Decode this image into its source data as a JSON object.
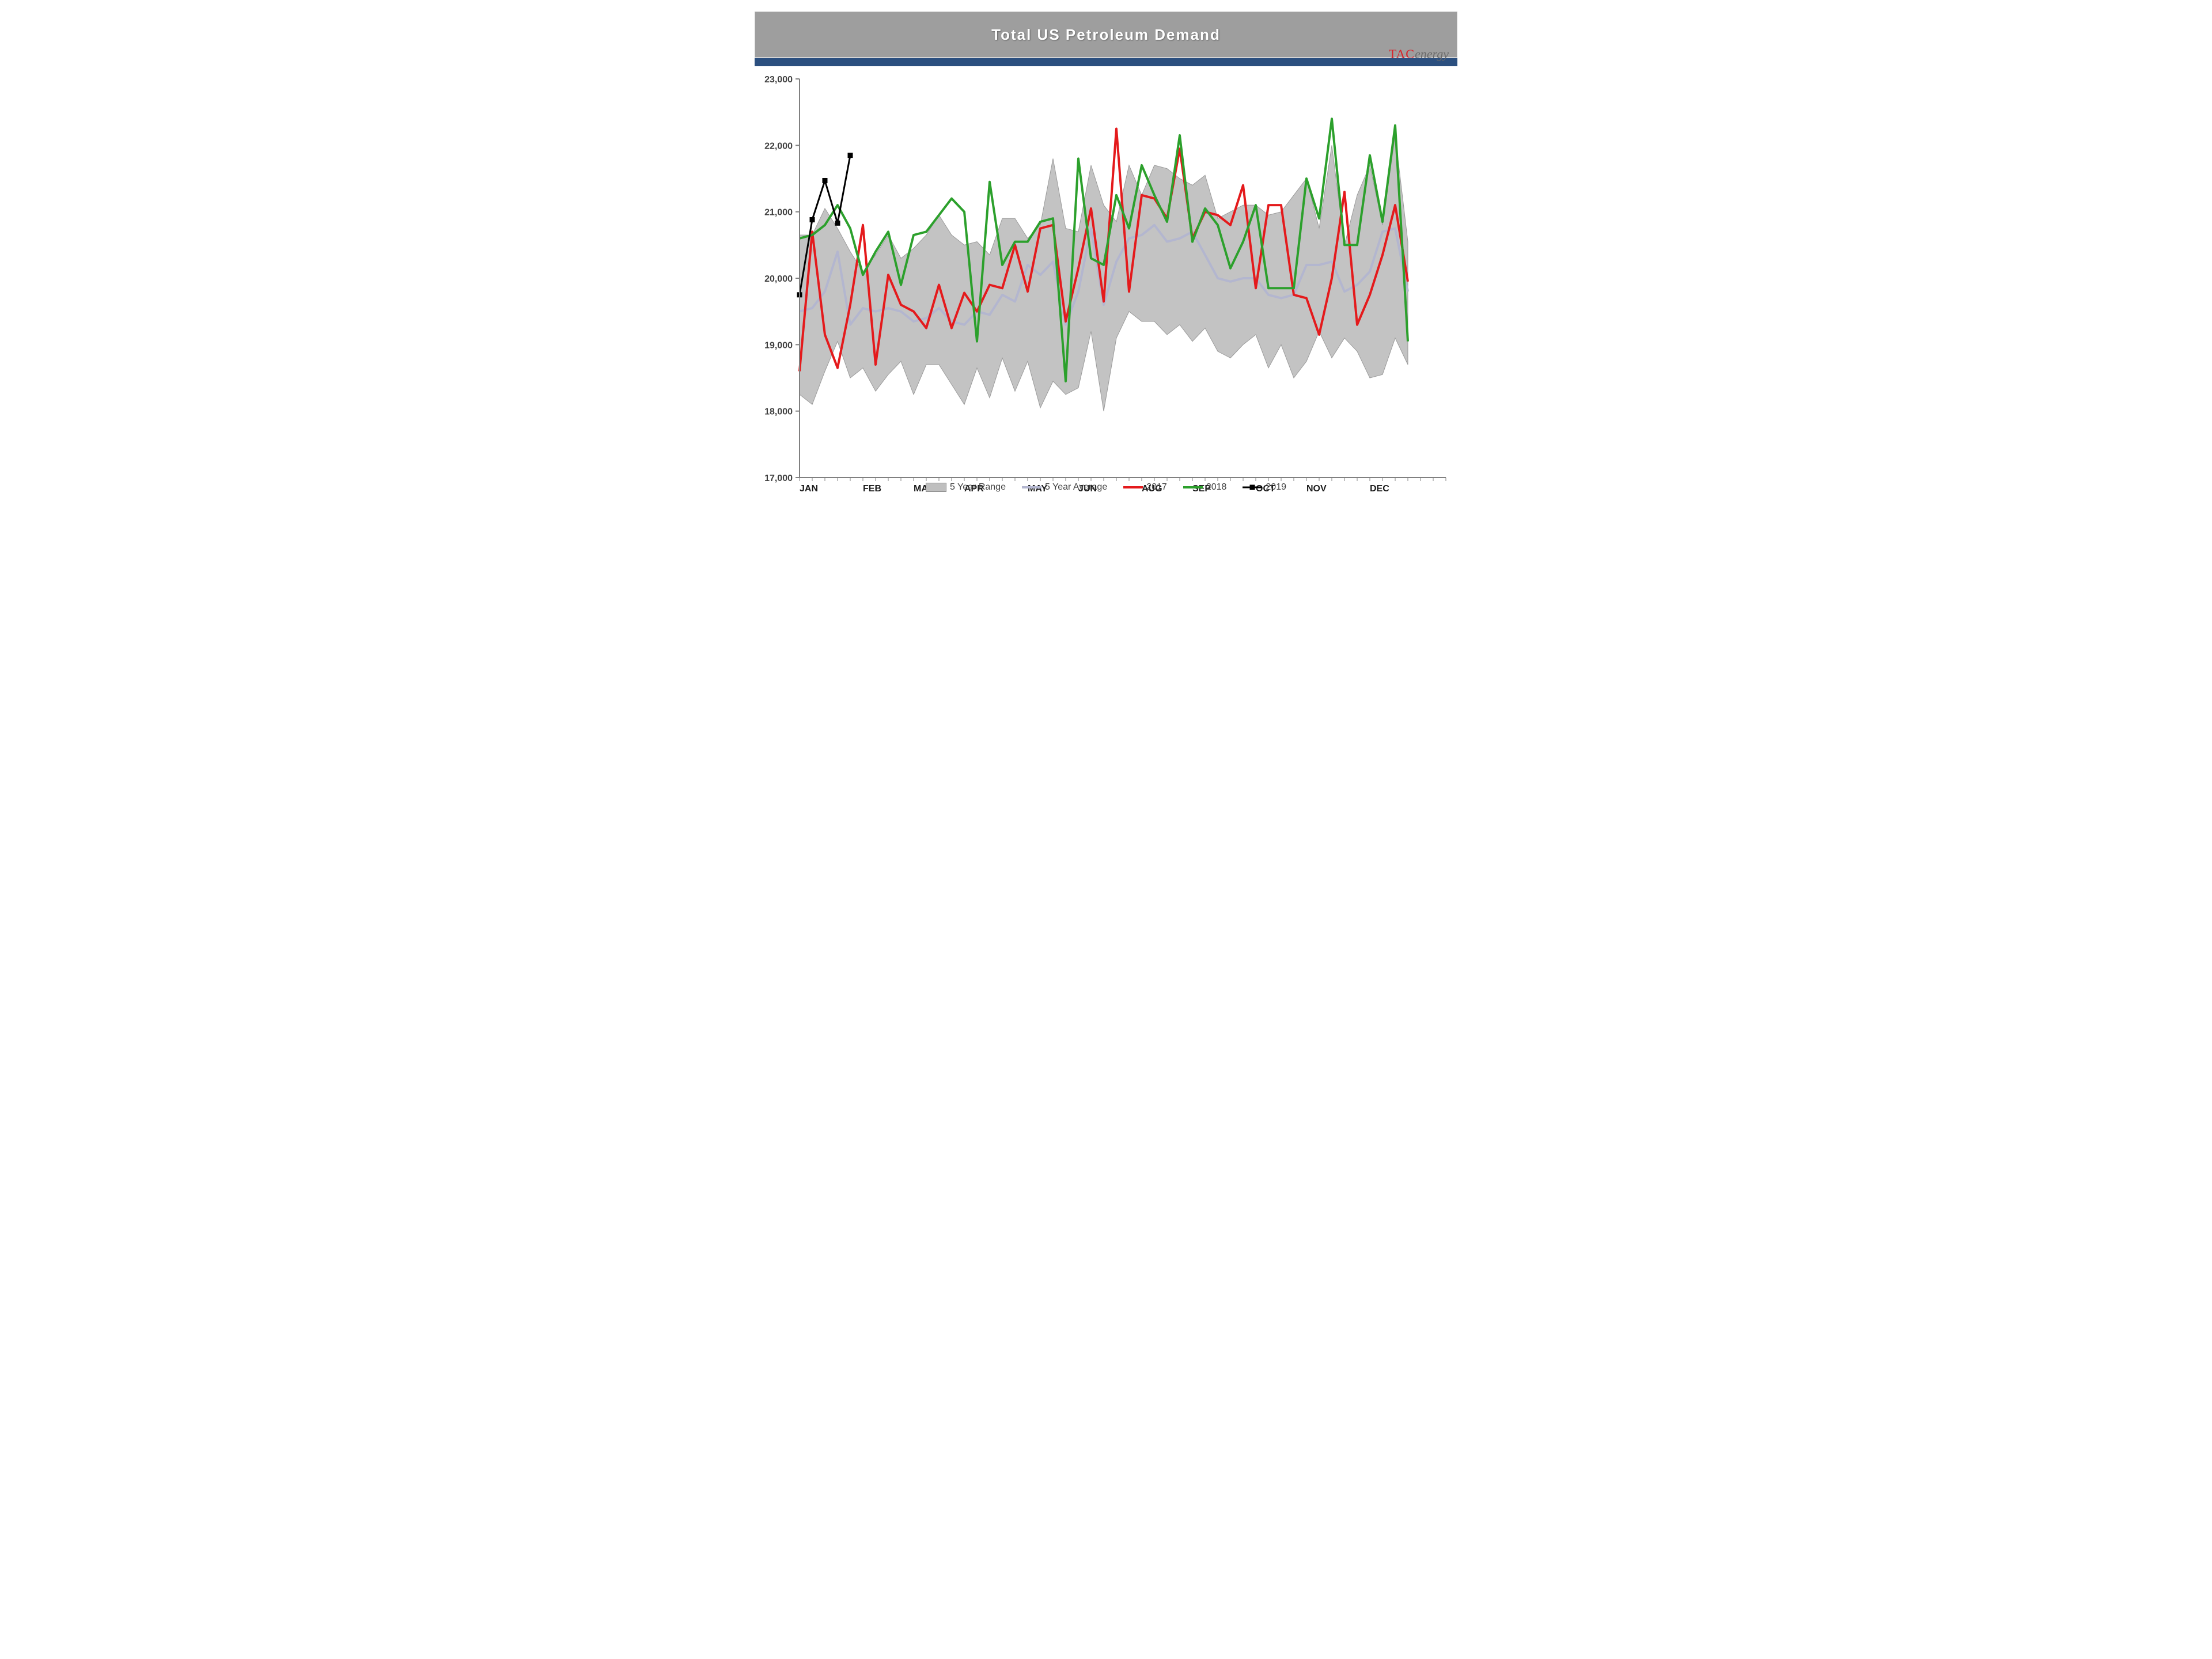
{
  "header": {
    "title": "Total US Petroleum Demand",
    "logo_primary": "TAC",
    "logo_secondary": "energy",
    "header_bg": "#9e9e9e",
    "strip_bg": "#2b4f7f",
    "title_color": "#ffffff"
  },
  "chart": {
    "type": "line",
    "background_color": "#ffffff",
    "ylim": [
      17000,
      23000
    ],
    "ytick_step": 1000,
    "ytick_labels": [
      "17,000",
      "18,000",
      "19,000",
      "20,000",
      "21,000",
      "22,000",
      "23,000"
    ],
    "xlabels": [
      "JAN",
      "FEB",
      "MAR",
      "APR",
      "MAY",
      "JUN",
      "AUG",
      "SEP",
      "OCT",
      "NOV",
      "DEC"
    ],
    "xlabel_positions_weeks": [
      0,
      5,
      9,
      13,
      18,
      22,
      27,
      31,
      36,
      40,
      45
    ],
    "n_weeks": 52,
    "axis_color": "#808080",
    "tick_color": "#808080",
    "tick_font_size": 16,
    "xtick_font_size": 16,
    "xtick_weight": "bold",
    "range_fill": "#b8b8b8",
    "range_stroke": "#9a9a9a",
    "range_opacity": 0.85,
    "series": {
      "range_high": [
        20650,
        20650,
        21050,
        20750,
        20400,
        20100,
        20350,
        20650,
        20300,
        20450,
        20650,
        20950,
        20650,
        20500,
        20550,
        20350,
        20900,
        20900,
        20600,
        20800,
        21800,
        20750,
        20700,
        21700,
        21100,
        20850,
        21700,
        21250,
        21700,
        21650,
        21500,
        21400,
        21550,
        20900,
        21000,
        21100,
        21100,
        20950,
        21000,
        21250,
        21500,
        20750,
        22000,
        20500,
        21250,
        21700,
        20800,
        22150,
        20550
      ],
      "range_low": [
        18250,
        18100,
        18600,
        19050,
        18500,
        18650,
        18300,
        18550,
        18750,
        18250,
        18700,
        18700,
        18400,
        18100,
        18650,
        18200,
        18800,
        18300,
        18750,
        18050,
        18450,
        18250,
        18350,
        19200,
        18000,
        19100,
        19500,
        19350,
        19350,
        19150,
        19300,
        19050,
        19250,
        18900,
        18800,
        19000,
        19150,
        18650,
        19000,
        18500,
        18750,
        19200,
        18800,
        19100,
        18900,
        18500,
        18550,
        19100,
        18700
      ],
      "avg": {
        "color": "#b3b6cf",
        "width": 4,
        "values": [
          19500,
          19550,
          19800,
          20400,
          19300,
          19550,
          19500,
          19550,
          19500,
          19350,
          19400,
          19550,
          19350,
          19300,
          19500,
          19450,
          19750,
          19650,
          20200,
          20050,
          20250,
          19300,
          19800,
          20750,
          19600,
          20250,
          20600,
          20650,
          20800,
          20550,
          20600,
          20700,
          20350,
          20000,
          19950,
          20000,
          20000,
          19750,
          19700,
          19750,
          20200,
          20200,
          20250,
          19800,
          19900,
          20100,
          20700,
          20750,
          19800
        ]
      },
      "s2017": {
        "color": "#e41a1c",
        "width": 4,
        "values": [
          18600,
          20700,
          19150,
          18650,
          19600,
          20800,
          18700,
          20050,
          19600,
          19500,
          19250,
          19900,
          19250,
          19780,
          19500,
          19900,
          19850,
          20500,
          19800,
          20750,
          20800,
          19350,
          20150,
          21050,
          19650,
          22250,
          19800,
          21250,
          21200,
          20900,
          21950,
          20600,
          21000,
          20950,
          20800,
          21400,
          19850,
          21100,
          21100,
          19750,
          19700,
          19150,
          20000,
          21300,
          19300,
          19750,
          20350,
          21100,
          19950
        ]
      },
      "s2018": {
        "color": "#2ca02c",
        "width": 4,
        "values": [
          20600,
          20650,
          20800,
          21100,
          20750,
          20050,
          20400,
          20700,
          19900,
          20650,
          20700,
          20950,
          21200,
          21000,
          19050,
          21450,
          20200,
          20550,
          20550,
          20850,
          20900,
          18450,
          21800,
          20300,
          20200,
          21250,
          20750,
          21700,
          21250,
          20850,
          22150,
          20550,
          21050,
          20800,
          20150,
          20550,
          21100,
          19850,
          19850,
          19850,
          21500,
          20900,
          22400,
          20500,
          20500,
          21850,
          20850,
          22300,
          19050
        ]
      },
      "s2019": {
        "color": "#000000",
        "width": 3,
        "marker_size": 9,
        "values": [
          19750,
          20880,
          21470,
          20830,
          21850
        ]
      }
    },
    "legend": [
      {
        "label": "5 Year Range",
        "type": "area",
        "color": "#bfbfbf"
      },
      {
        "label": "5 Year Average",
        "type": "line",
        "color": "#b3b6cf"
      },
      {
        "label": "2017",
        "type": "line",
        "color": "#e41a1c"
      },
      {
        "label": "2018",
        "type": "line",
        "color": "#2ca02c"
      },
      {
        "label": "2019",
        "type": "marker",
        "color": "#000000"
      }
    ]
  }
}
